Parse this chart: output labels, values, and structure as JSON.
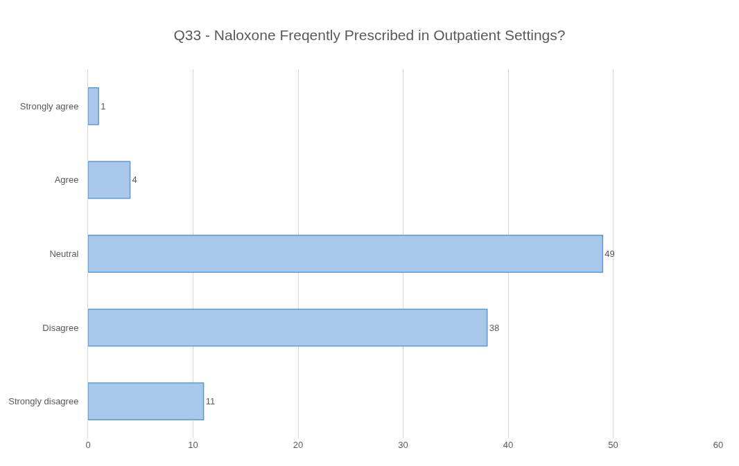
{
  "chart_data": {
    "type": "bar",
    "orientation": "horizontal",
    "title": "Q33 - Naloxone Freqently Prescribed in Outpatient Settings?",
    "categories": [
      "Strongly agree",
      "Agree",
      "Neutral",
      "Disagree",
      "Strongly disagree"
    ],
    "values": [
      1,
      4,
      49,
      38,
      11
    ],
    "color": "#a9c7ea",
    "data_labels": true,
    "xlim": [
      0,
      60
    ],
    "xticks": [
      0,
      10,
      20,
      30,
      40,
      50,
      60
    ],
    "grid": "x",
    "legend": false
  }
}
